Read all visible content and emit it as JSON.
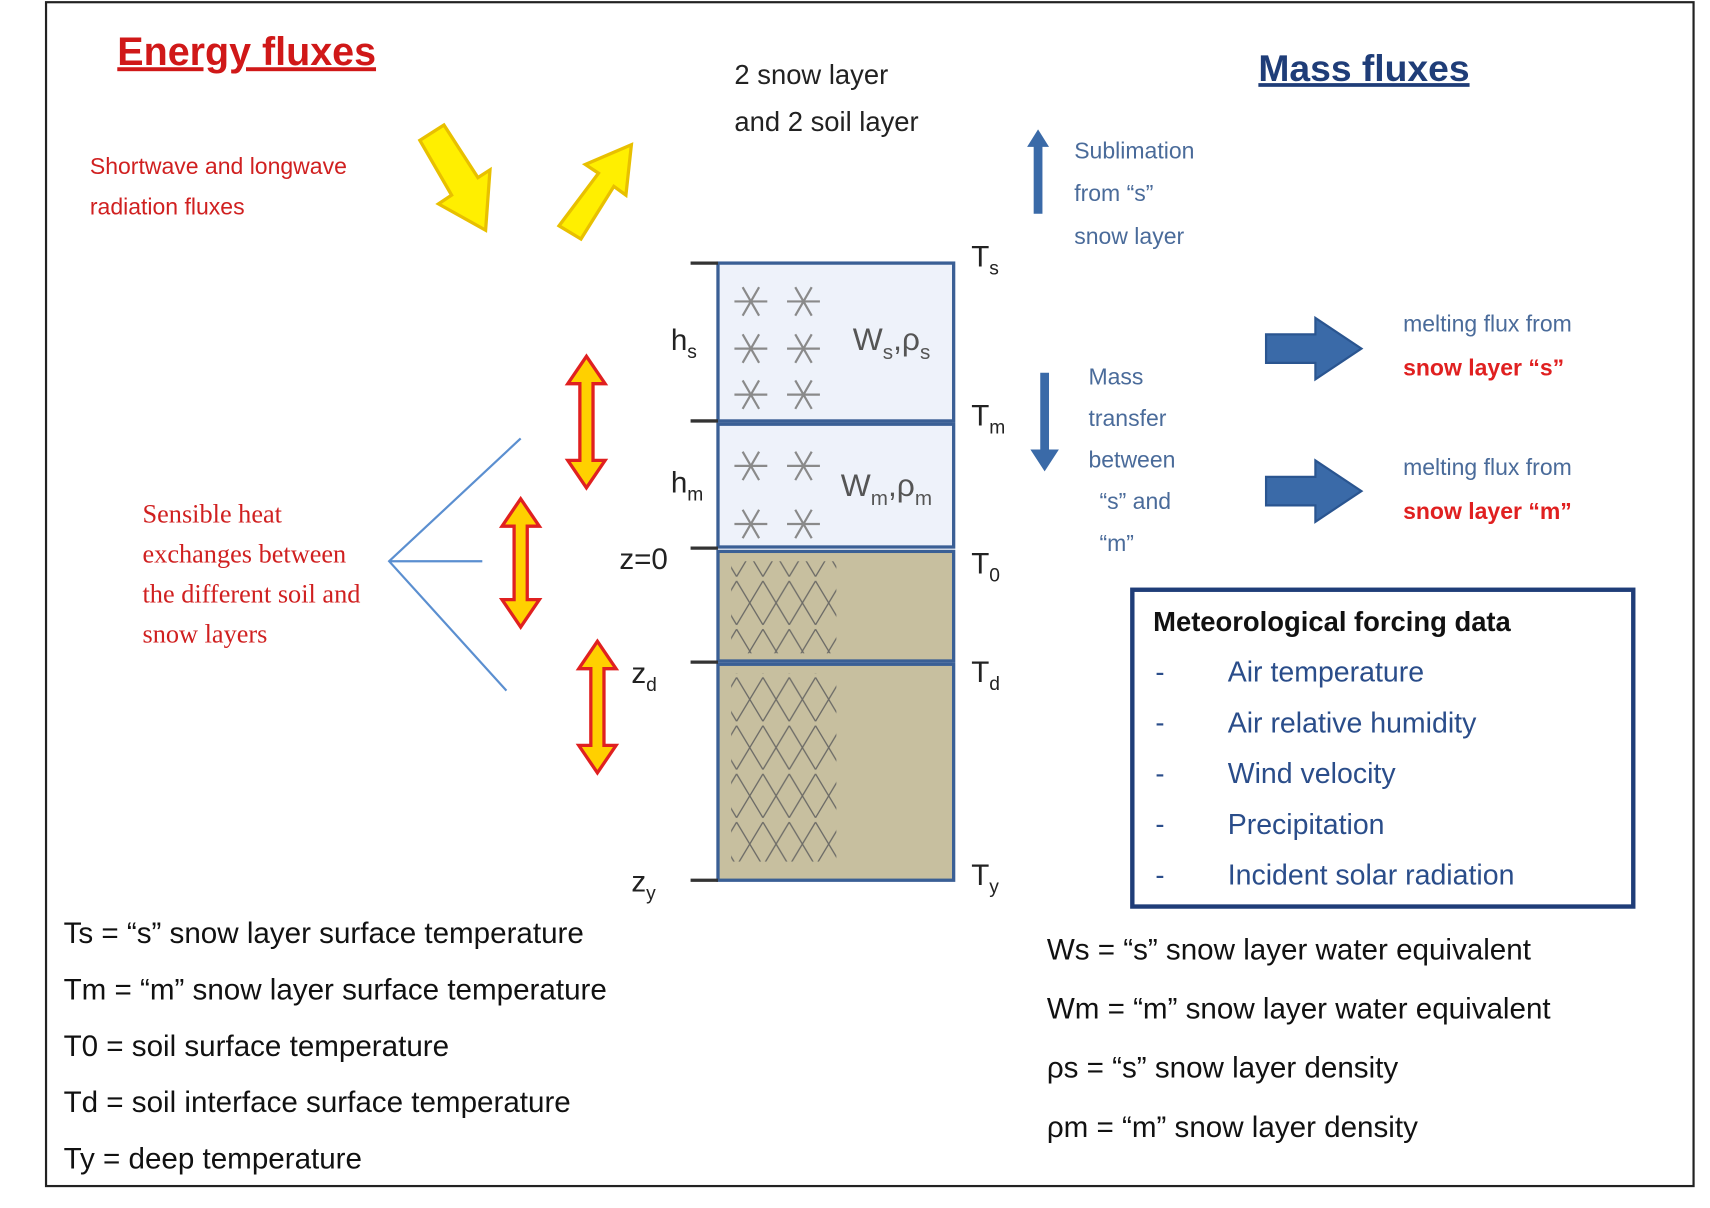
{
  "energy_fluxes": {
    "title": "Energy fluxes",
    "radiation": [
      "Shortwave and longwave",
      "radiation fluxes"
    ],
    "sensible_heat": [
      "Sensible heat",
      "exchanges between",
      "the different soil and",
      "snow layers"
    ]
  },
  "column": {
    "caption": [
      "2 snow layer",
      "and 2 soil layer"
    ],
    "depth_labels": [
      [
        "h",
        "s"
      ],
      [
        "h",
        "m"
      ],
      [
        "z=0"
      ],
      [
        "z",
        "d"
      ],
      [
        "z",
        "y"
      ]
    ],
    "temperature_labels": [
      [
        "T",
        "s"
      ],
      [
        "T",
        "m"
      ],
      [
        "T",
        "0"
      ],
      [
        "T",
        "d"
      ],
      [
        "T",
        "y"
      ]
    ],
    "layer_labels": [
      [
        "W",
        "s",
        ",ρ",
        "s"
      ],
      [
        "W",
        "m",
        ",ρ",
        "m"
      ]
    ]
  },
  "mass_fluxes": {
    "title": "Mass fluxes",
    "sublimation": [
      "Sublimation",
      "from “s”",
      "snow layer"
    ],
    "mass_transfer": [
      "Mass",
      "transfer",
      "between",
      "“s” and",
      "“m”"
    ],
    "melting": [
      {
        "line1": "melting flux from",
        "line2": "snow layer “s”"
      },
      {
        "line1": "melting flux from",
        "line2": "snow layer “m”"
      }
    ]
  },
  "forcing": {
    "title": "Meteorological forcing data",
    "bullet": "-",
    "items": [
      "Air temperature",
      "Air relative humidity",
      "Wind velocity",
      "Precipitation",
      "Incident solar radiation"
    ]
  },
  "legend_left": [
    "Ts = “s” snow layer surface temperature",
    "Tm = “m” snow layer surface temperature",
    "T0 = soil surface temperature",
    "Td = soil interface surface temperature",
    "Ty = deep temperature"
  ],
  "legend_right": [
    "Ws = “s” snow layer water equivalent",
    "Wm = “m” snow layer water equivalent",
    "ρs = “s” snow layer density",
    "ρm = “m” snow layer density"
  ]
}
